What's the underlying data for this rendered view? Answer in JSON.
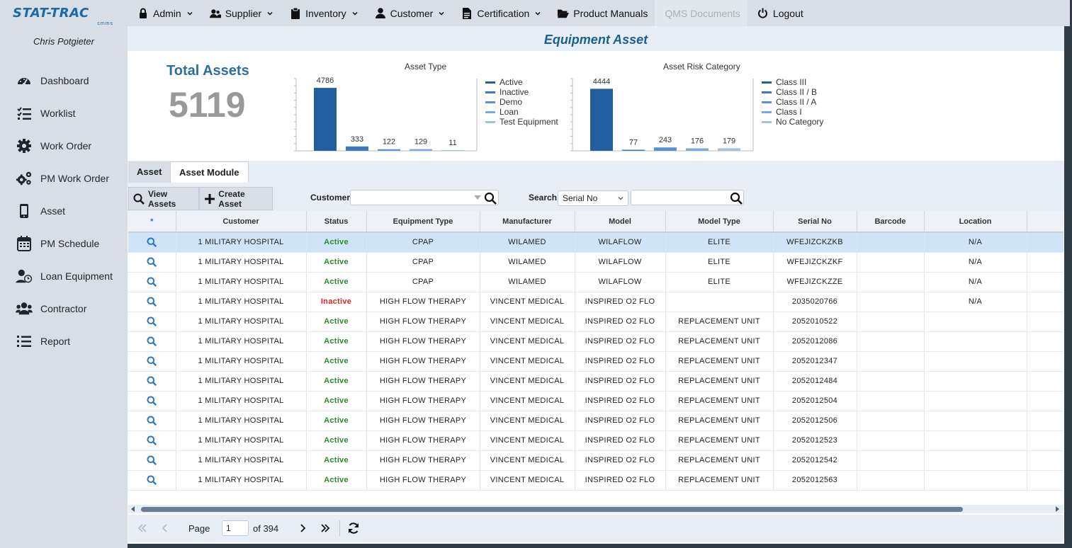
{
  "app": {
    "logo_text": "STAT-TRAC",
    "logo_sub": "cmms",
    "user_name": "Chris Potgieter"
  },
  "sidebar": {
    "items": [
      {
        "label": "Dashboard",
        "icon": "dashboard-gauge-icon"
      },
      {
        "label": "Worklist",
        "icon": "worklist-icon"
      },
      {
        "label": "Work Order",
        "icon": "gear-icon"
      },
      {
        "label": "PM Work Order",
        "icon": "gears-icon"
      },
      {
        "label": "Asset",
        "icon": "mobile-device-icon"
      },
      {
        "label": "PM Schedule",
        "icon": "calendar-icon"
      },
      {
        "label": "Loan Equipment",
        "icon": "user-clock-icon"
      },
      {
        "label": "Contractor",
        "icon": "users-icon"
      },
      {
        "label": "Report",
        "icon": "list-icon"
      }
    ]
  },
  "topmenu": {
    "items": [
      {
        "label": "Admin",
        "icon": "lock-icon",
        "dropdown": true
      },
      {
        "label": "Supplier",
        "icon": "users-icon",
        "dropdown": true
      },
      {
        "label": "Inventory",
        "icon": "clipboard-icon",
        "dropdown": true
      },
      {
        "label": "Customer",
        "icon": "user-icon",
        "dropdown": true
      },
      {
        "label": "Certification",
        "icon": "document-icon",
        "dropdown": true
      },
      {
        "label": "Product Manuals",
        "icon": "folder-open-icon",
        "dropdown": false
      },
      {
        "label": "QMS Documents",
        "icon": "",
        "dropdown": false,
        "disabled": true
      },
      {
        "label": "Logout",
        "icon": "power-icon",
        "dropdown": false
      }
    ]
  },
  "page": {
    "title": "Equipment Asset",
    "total_label": "Total Assets",
    "total_value": "5119"
  },
  "chart_data": [
    {
      "type": "bar",
      "title": "Asset Type",
      "categories": [
        "Active",
        "Inactive",
        "Demo",
        "Loan",
        "Test Equipment"
      ],
      "values": [
        4786,
        333,
        122,
        129,
        11
      ],
      "colors": [
        "#215fa0",
        "#3b78bd",
        "#5b93d2",
        "#78a9e0",
        "#9cc2ec"
      ],
      "legend": "right",
      "ylim": [
        0,
        5200
      ]
    },
    {
      "type": "bar",
      "title": "Asset Risk Category",
      "categories": [
        "Class III",
        "Class II / B",
        "Class II / A",
        "Class I",
        "No Category"
      ],
      "values": [
        4444,
        77,
        243,
        176,
        179
      ],
      "colors": [
        "#215fa0",
        "#3b78bd",
        "#5b93d2",
        "#78a9e0",
        "#9cc2ec"
      ],
      "legend": "right",
      "ylim": [
        0,
        4900
      ]
    }
  ],
  "tabs": [
    {
      "label": "Asset"
    },
    {
      "label": "Asset Module"
    }
  ],
  "toolbar": {
    "view_assets_label": "View Assets",
    "create_asset_label": "Create Asset",
    "customer_label": "Customer",
    "customer_value": "",
    "search_label": "Search",
    "search_by": "Serial No",
    "search_value": ""
  },
  "grid": {
    "columns": [
      "*",
      "Customer",
      "Status",
      "Equipment Type",
      "Manufacturer",
      "Model",
      "Model Type",
      "Serial No",
      "Barcode",
      "Location"
    ],
    "rows": [
      {
        "customer": "1 MILITARY HOSPITAL",
        "status": "Active",
        "equipment_type": "CPAP",
        "manufacturer": "WILAMED",
        "model": "WILAFLOW",
        "model_type": "ELITE",
        "serial_no": "WFEJIZCKZKB",
        "barcode": "",
        "location": "N/A"
      },
      {
        "customer": "1 MILITARY HOSPITAL",
        "status": "Active",
        "equipment_type": "CPAP",
        "manufacturer": "WILAMED",
        "model": "WILAFLOW",
        "model_type": "ELITE",
        "serial_no": "WFEJIZCKZKF",
        "barcode": "",
        "location": "N/A"
      },
      {
        "customer": "1 MILITARY HOSPITAL",
        "status": "Active",
        "equipment_type": "CPAP",
        "manufacturer": "WILAMED",
        "model": "WILAFLOW",
        "model_type": "ELITE",
        "serial_no": "WFEJIZCKZZE",
        "barcode": "",
        "location": "N/A"
      },
      {
        "customer": "1 MILITARY HOSPITAL",
        "status": "Inactive",
        "equipment_type": "HIGH FLOW THERAPY",
        "manufacturer": "VINCENT MEDICAL",
        "model": "INSPIRED O2 FLO",
        "model_type": "",
        "serial_no": "2035020766",
        "barcode": "",
        "location": "N/A"
      },
      {
        "customer": "1 MILITARY HOSPITAL",
        "status": "Active",
        "equipment_type": "HIGH FLOW THERAPY",
        "manufacturer": "VINCENT MEDICAL",
        "model": "INSPIRED O2 FLO",
        "model_type": "REPLACEMENT UNIT",
        "serial_no": "2052010522",
        "barcode": "",
        "location": ""
      },
      {
        "customer": "1 MILITARY HOSPITAL",
        "status": "Active",
        "equipment_type": "HIGH FLOW THERAPY",
        "manufacturer": "VINCENT MEDICAL",
        "model": "INSPIRED O2 FLO",
        "model_type": "REPLACEMENT UNIT",
        "serial_no": "2052012086",
        "barcode": "",
        "location": ""
      },
      {
        "customer": "1 MILITARY HOSPITAL",
        "status": "Active",
        "equipment_type": "HIGH FLOW THERAPY",
        "manufacturer": "VINCENT MEDICAL",
        "model": "INSPIRED O2 FLO",
        "model_type": "REPLACEMENT UNIT",
        "serial_no": "2052012347",
        "barcode": "",
        "location": ""
      },
      {
        "customer": "1 MILITARY HOSPITAL",
        "status": "Active",
        "equipment_type": "HIGH FLOW THERAPY",
        "manufacturer": "VINCENT MEDICAL",
        "model": "INSPIRED O2 FLO",
        "model_type": "REPLACEMENT UNIT",
        "serial_no": "2052012484",
        "barcode": "",
        "location": ""
      },
      {
        "customer": "1 MILITARY HOSPITAL",
        "status": "Active",
        "equipment_type": "HIGH FLOW THERAPY",
        "manufacturer": "VINCENT MEDICAL",
        "model": "INSPIRED O2 FLO",
        "model_type": "REPLACEMENT UNIT",
        "serial_no": "2052012504",
        "barcode": "",
        "location": ""
      },
      {
        "customer": "1 MILITARY HOSPITAL",
        "status": "Active",
        "equipment_type": "HIGH FLOW THERAPY",
        "manufacturer": "VINCENT MEDICAL",
        "model": "INSPIRED O2 FLO",
        "model_type": "REPLACEMENT UNIT",
        "serial_no": "2052012506",
        "barcode": "",
        "location": ""
      },
      {
        "customer": "1 MILITARY HOSPITAL",
        "status": "Active",
        "equipment_type": "HIGH FLOW THERAPY",
        "manufacturer": "VINCENT MEDICAL",
        "model": "INSPIRED O2 FLO",
        "model_type": "REPLACEMENT UNIT",
        "serial_no": "2052012523",
        "barcode": "",
        "location": ""
      },
      {
        "customer": "1 MILITARY HOSPITAL",
        "status": "Active",
        "equipment_type": "HIGH FLOW THERAPY",
        "manufacturer": "VINCENT MEDICAL",
        "model": "INSPIRED O2 FLO",
        "model_type": "REPLACEMENT UNIT",
        "serial_no": "2052012542",
        "barcode": "",
        "location": ""
      },
      {
        "customer": "1 MILITARY HOSPITAL",
        "status": "Active",
        "equipment_type": "HIGH FLOW THERAPY",
        "manufacturer": "VINCENT MEDICAL",
        "model": "INSPIRED O2 FLO",
        "model_type": "REPLACEMENT UNIT",
        "serial_no": "2052012563",
        "barcode": "",
        "location": ""
      }
    ],
    "selected_row": 0
  },
  "pager": {
    "page_label": "Page",
    "current_page": "1",
    "of_label": "of 394"
  },
  "colors": {
    "accent": "#1c5f8f",
    "active": "#2b8a2b",
    "inactive": "#dd2222",
    "selected_row": "#cfe4f7",
    "search_icon": "#2a78c2"
  }
}
